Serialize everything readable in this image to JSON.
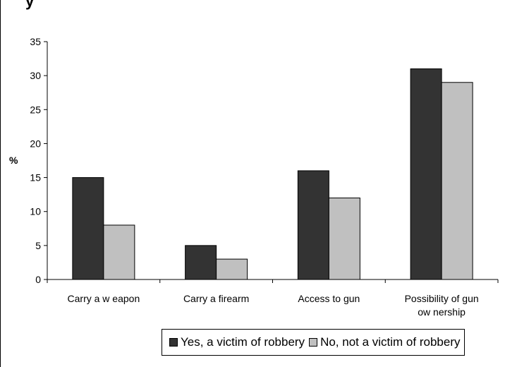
{
  "chart_data": {
    "type": "bar",
    "title_fragment": "y",
    "ylabel": "%",
    "xlabel": "",
    "ylim": [
      0,
      35
    ],
    "yticks": [
      0,
      5,
      10,
      15,
      20,
      25,
      30,
      35
    ],
    "grid": false,
    "legend_position": "bottom",
    "categories": [
      [
        "Carry a w eapon"
      ],
      [
        "Carry a firearm"
      ],
      [
        "Access to gun"
      ],
      [
        "Possibility of gun",
        "ow nership"
      ]
    ],
    "series": [
      {
        "name": "Yes, a victim of robbery",
        "color": "#333333",
        "values": [
          15,
          5,
          16,
          31
        ]
      },
      {
        "name": "No, not a victim of robbery",
        "color": "#c0c0c0",
        "values": [
          8,
          3,
          12,
          29
        ]
      }
    ]
  }
}
